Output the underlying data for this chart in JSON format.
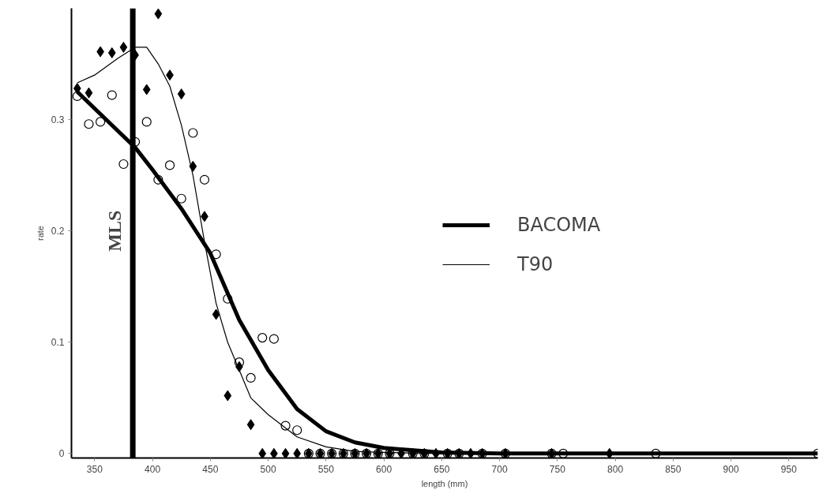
{
  "chart_data": {
    "type": "scatter",
    "xlabel": "length (mm)",
    "ylabel": "rate",
    "xlim": [
      330,
      975
    ],
    "ylim": [
      -0.004,
      0.4
    ],
    "xticks": [
      350,
      400,
      450,
      500,
      550,
      600,
      650,
      700,
      750,
      800,
      850,
      900,
      950
    ],
    "yticks": [
      0,
      0.1,
      0.2,
      0.3
    ],
    "grid": false,
    "legend": "right",
    "ref_lines": [
      {
        "axis": "x",
        "value": 383,
        "label": "MLS",
        "color": "#000000"
      }
    ],
    "series": [
      {
        "name": "BACOMA",
        "type": "line",
        "color": "#000000",
        "line_style": "solid",
        "marker": "none",
        "x": [
          335,
          350,
          370,
          385,
          400,
          425,
          450,
          475,
          500,
          525,
          550,
          575,
          600,
          650,
          700,
          975
        ],
        "values": [
          0.325,
          0.31,
          0.29,
          0.275,
          0.255,
          0.22,
          0.18,
          0.12,
          0.075,
          0.04,
          0.02,
          0.01,
          0.005,
          0.001,
          0,
          0
        ]
      },
      {
        "name": "T90",
        "type": "line",
        "color": "#000000",
        "line_style": "solid",
        "marker": "none",
        "x": [
          335,
          350,
          370,
          385,
          395,
          405,
          415,
          425,
          435,
          445,
          455,
          465,
          475,
          485,
          500,
          525,
          550,
          575,
          600,
          650,
          975
        ],
        "values": [
          0.333,
          0.34,
          0.355,
          0.365,
          0.365,
          0.35,
          0.33,
          0.295,
          0.25,
          0.19,
          0.135,
          0.1,
          0.075,
          0.05,
          0.035,
          0.015,
          0.006,
          0.002,
          0.001,
          0,
          0
        ]
      },
      {
        "color": "#000000",
        "marker": "diamond",
        "x": [
          335,
          345,
          355,
          365,
          375,
          385,
          395,
          405,
          415,
          425,
          435,
          445,
          455,
          465,
          475,
          485,
          495,
          505,
          515,
          525,
          535,
          545,
          555,
          565,
          575,
          585,
          595,
          605,
          615,
          625,
          635,
          645,
          655,
          665,
          675,
          685,
          705,
          745,
          795
        ],
        "values": [
          0.328,
          0.324,
          0.361,
          0.36,
          0.365,
          0.358,
          0.327,
          0.395,
          0.34,
          0.323,
          0.258,
          0.213,
          0.125,
          0.052,
          0.078,
          0.026,
          0,
          0,
          0,
          0,
          0,
          0,
          0,
          0,
          0,
          0,
          0,
          0,
          0,
          0,
          0,
          0,
          0,
          0,
          0,
          0,
          0,
          0,
          0
        ]
      },
      {
        "color": "#000000",
        "marker": "circle",
        "x": [
          335,
          345,
          355,
          365,
          375,
          385,
          395,
          405,
          415,
          425,
          435,
          445,
          455,
          465,
          475,
          485,
          495,
          505,
          515,
          525,
          535,
          545,
          555,
          565,
          575,
          585,
          595,
          605,
          625,
          635,
          655,
          665,
          685,
          705,
          745,
          755,
          835,
          975
        ],
        "values": [
          0.321,
          0.296,
          0.298,
          0.322,
          0.26,
          0.28,
          0.298,
          0.246,
          0.259,
          0.229,
          0.288,
          0.246,
          0.179,
          0.139,
          0.082,
          0.068,
          0.104,
          0.103,
          0.025,
          0.021,
          0,
          0,
          0,
          0,
          0,
          0,
          0,
          0,
          0,
          0,
          0,
          0,
          0,
          0,
          0,
          0,
          0,
          0
        ]
      }
    ]
  }
}
